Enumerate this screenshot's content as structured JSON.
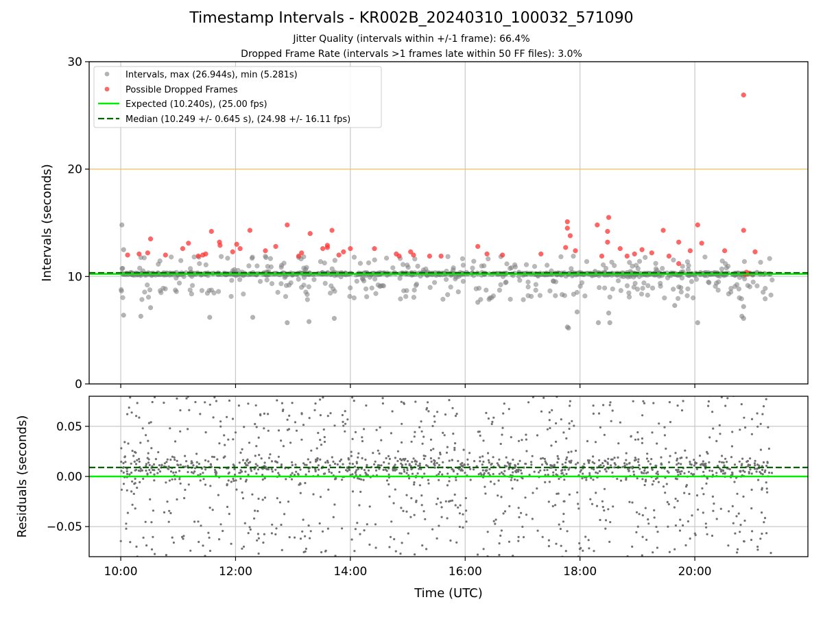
{
  "title": "Timestamp Intervals - KR002B_20240310_100032_571090",
  "subtitle1": "Jitter Quality (intervals within +/-1 frame): 66.4%",
  "subtitle2": "Dropped Frame Rate (intervals >1 frames late within 50 FF files): 3.0%",
  "chart_data": [
    {
      "type": "scatter",
      "panel": "top",
      "ylabel": "Intervals (seconds)",
      "ylim": [
        0,
        30
      ],
      "yticks": [
        "0",
        "10",
        "20",
        "30"
      ],
      "xlim_hours": [
        9.45,
        21.97
      ],
      "xticks": [
        {
          "v": 10,
          "label": "10:00"
        },
        {
          "v": 12,
          "label": "12:00"
        },
        {
          "v": 14,
          "label": "14:00"
        },
        {
          "v": 16,
          "label": "16:00"
        },
        {
          "v": 18,
          "label": "18:00"
        },
        {
          "v": 20,
          "label": "20:00"
        }
      ],
      "grid": true,
      "legend_position": "upper-left",
      "threshold_line": {
        "y": 20,
        "color": "#ffbf3f"
      },
      "expected": {
        "y": 10.24,
        "color": "#00ee00",
        "label": "Expected (10.240s), (25.00 fps)"
      },
      "median": {
        "y": 10.249,
        "color": "#006400",
        "label": "Median (10.249 +/- 0.645 s), (24.98 +/- 16.11 fps)"
      },
      "series": [
        {
          "name": "Intervals, max (26.944s), min (5.281s)",
          "color": "#808080",
          "max": 26.944,
          "min": 5.281
        },
        {
          "name": "Possible Dropped Frames",
          "color": "#ff3333",
          "points": [
            [
              10.12,
              12.0
            ],
            [
              10.32,
              12.1
            ],
            [
              10.47,
              12.2
            ],
            [
              10.52,
              13.5
            ],
            [
              10.78,
              12.0
            ],
            [
              11.08,
              12.6
            ],
            [
              11.18,
              13.1
            ],
            [
              11.35,
              11.9
            ],
            [
              11.43,
              12.0
            ],
            [
              11.48,
              12.1
            ],
            [
              11.58,
              14.2
            ],
            [
              11.72,
              13.2
            ],
            [
              11.73,
              12.9
            ],
            [
              11.95,
              12.3
            ],
            [
              12.02,
              13.0
            ],
            [
              12.08,
              12.6
            ],
            [
              12.25,
              14.3
            ],
            [
              12.52,
              12.4
            ],
            [
              12.7,
              12.8
            ],
            [
              12.9,
              14.8
            ],
            [
              13.1,
              11.9
            ],
            [
              13.15,
              12.2
            ],
            [
              13.3,
              14.0
            ],
            [
              13.52,
              12.6
            ],
            [
              13.6,
              12.7
            ],
            [
              13.6,
              12.9
            ],
            [
              13.68,
              14.3
            ],
            [
              13.8,
              12.0
            ],
            [
              13.88,
              12.3
            ],
            [
              14.0,
              12.6
            ],
            [
              14.42,
              12.6
            ],
            [
              14.8,
              12.1
            ],
            [
              14.85,
              11.9
            ],
            [
              15.05,
              12.3
            ],
            [
              15.1,
              12.0
            ],
            [
              15.38,
              11.9
            ],
            [
              15.58,
              11.9
            ],
            [
              16.22,
              12.8
            ],
            [
              16.38,
              12.1
            ],
            [
              16.65,
              12.0
            ],
            [
              17.32,
              12.1
            ],
            [
              17.75,
              12.7
            ],
            [
              17.78,
              15.1
            ],
            [
              17.78,
              14.5
            ],
            [
              17.83,
              13.8
            ],
            [
              17.92,
              12.4
            ],
            [
              18.3,
              14.8
            ],
            [
              18.38,
              11.9
            ],
            [
              18.5,
              15.5
            ],
            [
              18.48,
              14.2
            ],
            [
              18.48,
              13.2
            ],
            [
              18.7,
              12.6
            ],
            [
              18.82,
              11.9
            ],
            [
              18.95,
              12.1
            ],
            [
              19.08,
              12.5
            ],
            [
              19.25,
              12.2
            ],
            [
              19.45,
              14.3
            ],
            [
              19.55,
              11.9
            ],
            [
              19.72,
              13.2
            ],
            [
              19.72,
              11.2
            ],
            [
              19.92,
              12.4
            ],
            [
              20.05,
              14.8
            ],
            [
              20.12,
              13.1
            ],
            [
              20.52,
              12.4
            ],
            [
              20.85,
              26.9
            ],
            [
              20.85,
              14.3
            ],
            [
              20.9,
              10.4
            ],
            [
              20.95,
              10.3
            ],
            [
              20.88,
              10.2
            ],
            [
              21.05,
              12.3
            ]
          ]
        }
      ]
    },
    {
      "type": "scatter",
      "panel": "bottom",
      "xlabel": "Time (UTC)",
      "ylabel": "Residuals (seconds)",
      "ylim": [
        -0.08,
        0.08
      ],
      "yticks": [
        {
          "v": 0.05,
          "label": "0.05"
        },
        {
          "v": 0.0,
          "label": "0.00"
        },
        {
          "v": -0.05,
          "label": "−0.05"
        }
      ],
      "xlim_hours": [
        9.45,
        21.97
      ],
      "grid": true,
      "expected": {
        "y": 0.0,
        "color": "#00ee00"
      },
      "median": {
        "y": 0.009,
        "color": "#006400"
      },
      "series": [
        {
          "name": "",
          "color": "#707070",
          "x_range": [
            10.0,
            21.35
          ],
          "count": 1600
        }
      ]
    }
  ]
}
